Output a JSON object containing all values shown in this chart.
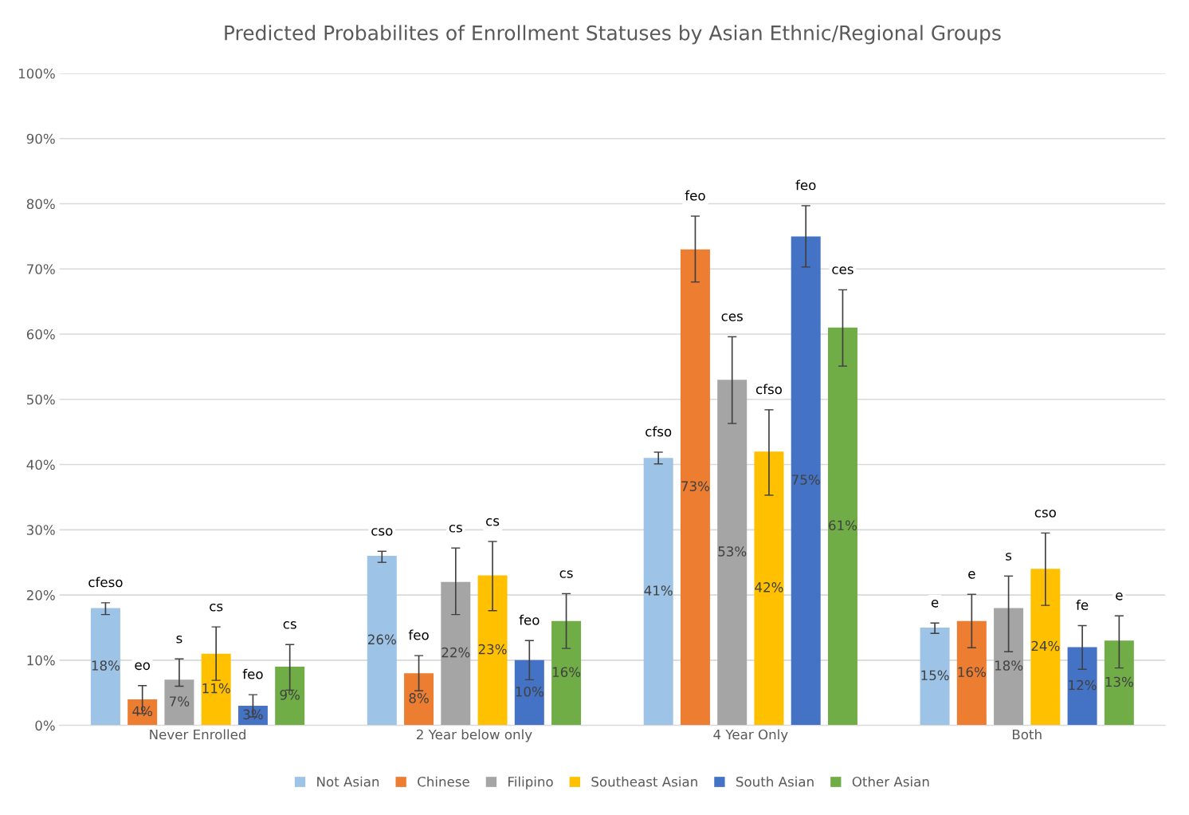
{
  "chart_data": {
    "type": "bar",
    "title": "Predicted Probabilites of Enrollment Statuses by Asian Ethnic/Regional Groups",
    "categories": [
      "Never Enrolled",
      "2 Year below only",
      "4 Year Only",
      "Both"
    ],
    "series": [
      {
        "name": "Not Asian",
        "color": "#9dc3e6",
        "values": [
          18,
          26,
          41,
          15
        ],
        "value_labels": [
          "18%",
          "26%",
          "41%",
          "15%"
        ],
        "errors": [
          [
            17.0,
            18.8
          ],
          [
            25.0,
            26.7
          ],
          [
            40.1,
            41.9
          ],
          [
            14.1,
            15.7
          ]
        ]
      },
      {
        "name": "Chinese",
        "color": "#ed7d31",
        "values": [
          4,
          8,
          73,
          16
        ],
        "value_labels": [
          "4%",
          "8%",
          "73%",
          "16%"
        ],
        "errors": [
          [
            1.8,
            6.1
          ],
          [
            5.3,
            10.7
          ],
          [
            68.0,
            78.1
          ],
          [
            11.9,
            20.1
          ]
        ]
      },
      {
        "name": "Filipino",
        "color": "#a5a5a5",
        "values": [
          7,
          22,
          53,
          18
        ],
        "value_labels": [
          "7%",
          "22%",
          "53%",
          "18%"
        ],
        "errors": [
          [
            6.0,
            10.2
          ],
          [
            17.0,
            27.2
          ],
          [
            46.3,
            59.6
          ],
          [
            11.3,
            22.9
          ]
        ]
      },
      {
        "name": "Southeast Asian",
        "color": "#ffc000",
        "values": [
          11,
          23,
          42,
          24
        ],
        "value_labels": [
          "11%",
          "23%",
          "42%",
          "24%"
        ],
        "errors": [
          [
            6.9,
            15.1
          ],
          [
            17.6,
            28.2
          ],
          [
            35.3,
            48.4
          ],
          [
            18.4,
            29.5
          ]
        ]
      },
      {
        "name": "South Asian",
        "color": "#4472c4",
        "values": [
          3,
          10,
          75,
          12
        ],
        "value_labels": [
          "3%",
          "10%",
          "75%",
          "12%"
        ],
        "errors": [
          [
            1.3,
            4.7
          ],
          [
            7.0,
            13.0
          ],
          [
            70.3,
            79.7
          ],
          [
            8.6,
            15.3
          ]
        ]
      },
      {
        "name": "Other Asian",
        "color": "#70ad47",
        "values": [
          9,
          16,
          61,
          13
        ],
        "value_labels": [
          "9%",
          "16%",
          "61%",
          "13%"
        ],
        "errors": [
          [
            5.4,
            12.4
          ],
          [
            11.8,
            20.2
          ],
          [
            55.1,
            66.8
          ],
          [
            8.8,
            16.8
          ]
        ]
      }
    ],
    "annotations": [
      "cfeso",
      "eo",
      "s",
      "cs",
      "feo",
      "cs",
      "cso",
      "feo",
      "cs",
      "cs",
      "feo",
      "cs",
      "cfso",
      "feo",
      "ces",
      "cfso",
      "feo",
      "ces",
      "e",
      "e",
      "s",
      "cso",
      "fe",
      "e"
    ],
    "ylim": [
      0,
      100
    ],
    "yticks": [
      {
        "value": 0,
        "label": "0%"
      },
      {
        "value": 10,
        "label": "10%"
      },
      {
        "value": 20,
        "label": "20%"
      },
      {
        "value": 30,
        "label": "30%"
      },
      {
        "value": 40,
        "label": "40%"
      },
      {
        "value": 50,
        "label": "50%"
      },
      {
        "value": 60,
        "label": "60%"
      },
      {
        "value": 70,
        "label": "70%"
      },
      {
        "value": 80,
        "label": "80%"
      },
      {
        "value": 90,
        "label": "90%"
      },
      {
        "value": 100,
        "label": "100%"
      }
    ],
    "grid": "y",
    "legend": "bottom"
  }
}
